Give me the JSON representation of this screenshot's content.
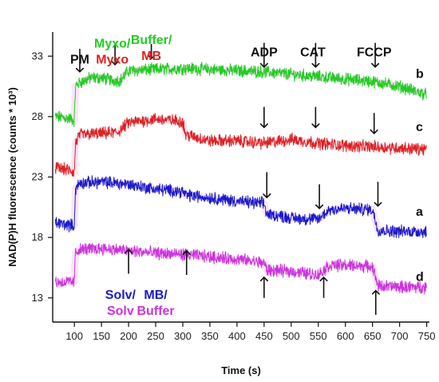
{
  "chart_data": {
    "type": "line",
    "xlabel": "Time (s)",
    "ylabel": "NAD(P)H fluorescence (counts * 10³)",
    "xlim": [
      60,
      755
    ],
    "ylim": [
      11,
      35
    ],
    "xticks": [
      100,
      150,
      200,
      250,
      300,
      350,
      400,
      450,
      500,
      550,
      600,
      650,
      700,
      750
    ],
    "yticks": [
      13,
      18,
      23,
      28,
      33
    ],
    "grid": false,
    "series": [
      {
        "name": "b",
        "color": "#22cc22",
        "x": [
          65,
          95,
          100,
          102,
          110,
          130,
          150,
          170,
          185,
          200,
          250,
          300,
          350,
          400,
          450,
          500,
          550,
          600,
          650,
          700,
          750
        ],
        "values": [
          28.0,
          27.8,
          27.6,
          30.5,
          30.8,
          31.2,
          31.2,
          31.0,
          31.0,
          31.8,
          31.9,
          32.0,
          31.9,
          31.8,
          31.7,
          31.5,
          31.3,
          31.1,
          30.9,
          30.5,
          29.8
        ]
      },
      {
        "name": "c",
        "color": "#dd2222",
        "x": [
          65,
          95,
          100,
          102,
          110,
          150,
          180,
          200,
          250,
          300,
          305,
          350,
          400,
          450,
          500,
          550,
          600,
          650,
          700,
          750
        ],
        "values": [
          23.8,
          23.5,
          23.3,
          25.8,
          26.5,
          26.6,
          26.7,
          27.5,
          27.8,
          27.6,
          26.5,
          26.0,
          26.0,
          25.8,
          26.1,
          25.8,
          25.6,
          25.5,
          25.4,
          25.3
        ]
      },
      {
        "name": "a",
        "color": "#1a1acc",
        "x": [
          65,
          95,
          100,
          102,
          110,
          150,
          200,
          250,
          300,
          305,
          350,
          400,
          450,
          455,
          480,
          500,
          550,
          570,
          600,
          650,
          660,
          700,
          750
        ],
        "values": [
          19.2,
          19.0,
          19.0,
          22.0,
          22.5,
          22.6,
          22.4,
          22.0,
          21.8,
          21.5,
          21.3,
          21.0,
          20.8,
          19.9,
          19.8,
          19.6,
          19.5,
          20.3,
          20.4,
          20.3,
          18.6,
          18.5,
          18.5
        ]
      },
      {
        "name": "d",
        "color": "#cc33dd",
        "x": [
          65,
          95,
          100,
          102,
          110,
          150,
          200,
          250,
          300,
          350,
          400,
          450,
          455,
          500,
          550,
          570,
          600,
          650,
          660,
          700,
          750
        ],
        "values": [
          14.3,
          14.3,
          14.3,
          16.8,
          17.0,
          17.1,
          16.9,
          16.7,
          16.6,
          16.4,
          16.2,
          15.9,
          15.3,
          15.2,
          14.9,
          15.7,
          15.7,
          15.6,
          14.0,
          13.9,
          13.9
        ]
      }
    ],
    "annotations": [
      {
        "lines": [
          "PM"
        ],
        "colors": [
          "#111111"
        ],
        "x": 110,
        "y": 32.4
      },
      {
        "lines": [
          "Myxo/",
          "Myxo"
        ],
        "colors": [
          "#22cc22",
          "#dd2222"
        ],
        "x": 170,
        "y": 32.4
      },
      {
        "lines": [
          "Buffer/",
          "MB"
        ],
        "colors": [
          "#22cc22",
          "#dd2222"
        ],
        "x": 242,
        "y": 32.7
      },
      {
        "lines": [
          "ADP"
        ],
        "colors": [
          "#111111"
        ],
        "x": 450,
        "y": 33.0
      },
      {
        "lines": [
          "CAT"
        ],
        "colors": [
          "#111111"
        ],
        "x": 540,
        "y": 33.0
      },
      {
        "lines": [
          "FCCP"
        ],
        "colors": [
          "#111111"
        ],
        "x": 653,
        "y": 33.0
      },
      {
        "lines": [
          "Solv/",
          "Solv"
        ],
        "colors": [
          "#1a1acc",
          "#cc33dd"
        ],
        "x": 185,
        "y": 11.6
      },
      {
        "lines": [
          "MB/",
          "Buffer"
        ],
        "colors": [
          "#1a1acc",
          "#cc33dd"
        ],
        "x": 250,
        "y": 11.6
      }
    ],
    "trace_labels": [
      {
        "text": "b",
        "x": 730,
        "y": 31.2
      },
      {
        "text": "c",
        "x": 730,
        "y": 26.8
      },
      {
        "text": "a",
        "x": 730,
        "y": 19.8
      },
      {
        "text": "d",
        "x": 730,
        "y": 14.4
      }
    ],
    "arrows": [
      {
        "x": 110,
        "dir": "down",
        "y_start": 33.6,
        "y_end": 31.7
      },
      {
        "x": 175,
        "dir": "down",
        "y_start": 34.0,
        "y_end": 32.3
      },
      {
        "x": 242,
        "dir": "down",
        "y_start": 34.0,
        "y_end": 32.8
      },
      {
        "x": 450,
        "dir": "down",
        "y_start": 34.1,
        "y_end": 32.1
      },
      {
        "x": 545,
        "dir": "down",
        "y_start": 34.1,
        "y_end": 32.1
      },
      {
        "x": 655,
        "dir": "down",
        "y_start": 34.1,
        "y_end": 32.1
      },
      {
        "x": 450,
        "dir": "down",
        "y_start": 28.8,
        "y_end": 27.1
      },
      {
        "x": 545,
        "dir": "down",
        "y_start": 28.8,
        "y_end": 27.1
      },
      {
        "x": 653,
        "dir": "down",
        "y_start": 28.3,
        "y_end": 26.6
      },
      {
        "x": 455,
        "dir": "down",
        "y_start": 23.4,
        "y_end": 21.3
      },
      {
        "x": 552,
        "dir": "down",
        "y_start": 22.4,
        "y_end": 20.4
      },
      {
        "x": 660,
        "dir": "down",
        "y_start": 22.6,
        "y_end": 20.6
      },
      {
        "x": 200,
        "dir": "up",
        "y_start": 15.0,
        "y_end": 17.0
      },
      {
        "x": 307,
        "dir": "up",
        "y_start": 14.9,
        "y_end": 16.9
      },
      {
        "x": 450,
        "dir": "up",
        "y_start": 13.0,
        "y_end": 14.7
      },
      {
        "x": 560,
        "dir": "up",
        "y_start": 13.0,
        "y_end": 14.7
      },
      {
        "x": 656,
        "dir": "up",
        "y_start": 11.6,
        "y_end": 13.6
      }
    ]
  }
}
